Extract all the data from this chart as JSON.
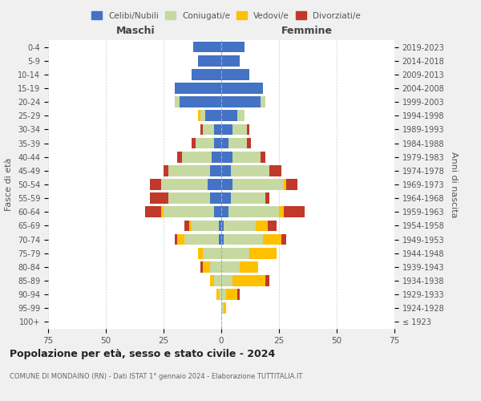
{
  "age_groups": [
    "100+",
    "95-99",
    "90-94",
    "85-89",
    "80-84",
    "75-79",
    "70-74",
    "65-69",
    "60-64",
    "55-59",
    "50-54",
    "45-49",
    "40-44",
    "35-39",
    "30-34",
    "25-29",
    "20-24",
    "15-19",
    "10-14",
    "5-9",
    "0-4"
  ],
  "birth_years": [
    "≤ 1923",
    "1924-1928",
    "1929-1933",
    "1934-1938",
    "1939-1943",
    "1944-1948",
    "1949-1953",
    "1954-1958",
    "1959-1963",
    "1964-1968",
    "1969-1973",
    "1974-1978",
    "1979-1983",
    "1984-1988",
    "1989-1993",
    "1994-1998",
    "1999-2003",
    "2004-2008",
    "2009-2013",
    "2014-2018",
    "2019-2023"
  ],
  "male": {
    "celibi": [
      0,
      0,
      0,
      0,
      0,
      0,
      1,
      1,
      3,
      5,
      6,
      5,
      4,
      3,
      3,
      7,
      18,
      20,
      13,
      10,
      12
    ],
    "coniugati": [
      0,
      0,
      1,
      3,
      5,
      8,
      15,
      12,
      22,
      18,
      20,
      18,
      13,
      8,
      5,
      2,
      2,
      0,
      0,
      0,
      0
    ],
    "vedovi": [
      0,
      0,
      1,
      2,
      3,
      2,
      3,
      1,
      1,
      0,
      0,
      0,
      0,
      0,
      0,
      1,
      0,
      0,
      0,
      0,
      0
    ],
    "divorziati": [
      0,
      0,
      0,
      0,
      1,
      0,
      1,
      2,
      7,
      8,
      5,
      2,
      2,
      2,
      1,
      0,
      0,
      0,
      0,
      0,
      0
    ]
  },
  "female": {
    "nubili": [
      0,
      0,
      0,
      0,
      0,
      0,
      1,
      1,
      3,
      4,
      5,
      4,
      5,
      3,
      5,
      7,
      17,
      18,
      12,
      8,
      10
    ],
    "coniugate": [
      0,
      1,
      2,
      5,
      8,
      12,
      17,
      14,
      22,
      15,
      22,
      17,
      12,
      8,
      6,
      3,
      2,
      0,
      0,
      0,
      0
    ],
    "vedove": [
      0,
      1,
      5,
      14,
      8,
      12,
      8,
      5,
      2,
      0,
      1,
      0,
      0,
      0,
      0,
      0,
      0,
      0,
      0,
      0,
      0
    ],
    "divorziate": [
      0,
      0,
      1,
      2,
      0,
      0,
      2,
      4,
      9,
      2,
      5,
      5,
      2,
      2,
      1,
      0,
      0,
      0,
      0,
      0,
      0
    ]
  },
  "colors": {
    "celibi": "#4472c4",
    "coniugati": "#c5d9a0",
    "vedovi": "#ffc000",
    "divorziati": "#c0392b"
  },
  "xlim": 75,
  "title": "Popolazione per età, sesso e stato civile - 2024",
  "subtitle": "COMUNE DI MONDAINO (RN) - Dati ISTAT 1° gennaio 2024 - Elaborazione TUTTITALIA.IT",
  "ylabel": "Fasce di età",
  "ylabel_right": "Anni di nascita",
  "xlabel_left": "Maschi",
  "xlabel_right": "Femmine",
  "legend_labels": [
    "Celibi/Nubili",
    "Coniugati/e",
    "Vedovi/e",
    "Divorziati/e"
  ],
  "bg_color": "#f0f0f0",
  "plot_bg_color": "#ffffff"
}
